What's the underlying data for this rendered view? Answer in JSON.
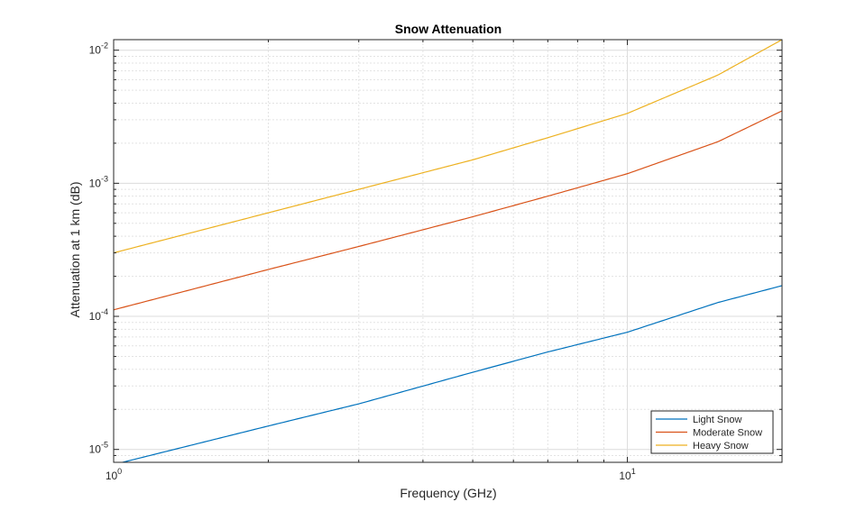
{
  "chart_data": {
    "type": "line",
    "title": "Snow Attenuation",
    "xlabel": "Frequency (GHz)",
    "ylabel": "Attenuation at 1 km (dB)",
    "xscale": "log",
    "yscale": "log",
    "xlim": [
      1,
      20
    ],
    "ylim": [
      8e-06,
      0.012
    ],
    "grid": true,
    "minor_grid": true,
    "legend_location": "bottom-right",
    "x_ticks": [
      {
        "value": 1,
        "base": "10",
        "exp": "0"
      },
      {
        "value": 10,
        "base": "10",
        "exp": "1"
      }
    ],
    "y_ticks": [
      {
        "value": 1e-05,
        "base": "10",
        "exp": "-5"
      },
      {
        "value": 0.0001,
        "base": "10",
        "exp": "-4"
      },
      {
        "value": 0.001,
        "base": "10",
        "exp": "-3"
      },
      {
        "value": 0.01,
        "base": "10",
        "exp": "-2"
      }
    ],
    "series": [
      {
        "name": "Light Snow",
        "color": "#0072BD",
        "x": [
          1,
          2,
          3,
          5,
          7,
          10,
          15,
          20
        ],
        "y": [
          7.7e-06,
          1.5e-05,
          2.2e-05,
          3.8e-05,
          5.4e-05,
          7.6e-05,
          0.000127,
          0.00017
        ]
      },
      {
        "name": "Moderate Snow",
        "color": "#D95319",
        "x": [
          1,
          2,
          3,
          5,
          7,
          10,
          15,
          20
        ],
        "y": [
          0.000112,
          0.000225,
          0.000335,
          0.00056,
          0.0008,
          0.00118,
          0.00205,
          0.0035
        ]
      },
      {
        "name": "Heavy Snow",
        "color": "#EDB120",
        "x": [
          1,
          2,
          3,
          5,
          7,
          10,
          15,
          20
        ],
        "y": [
          0.0003,
          0.0006,
          0.0009,
          0.0015,
          0.0022,
          0.00335,
          0.0065,
          0.012
        ]
      }
    ]
  }
}
